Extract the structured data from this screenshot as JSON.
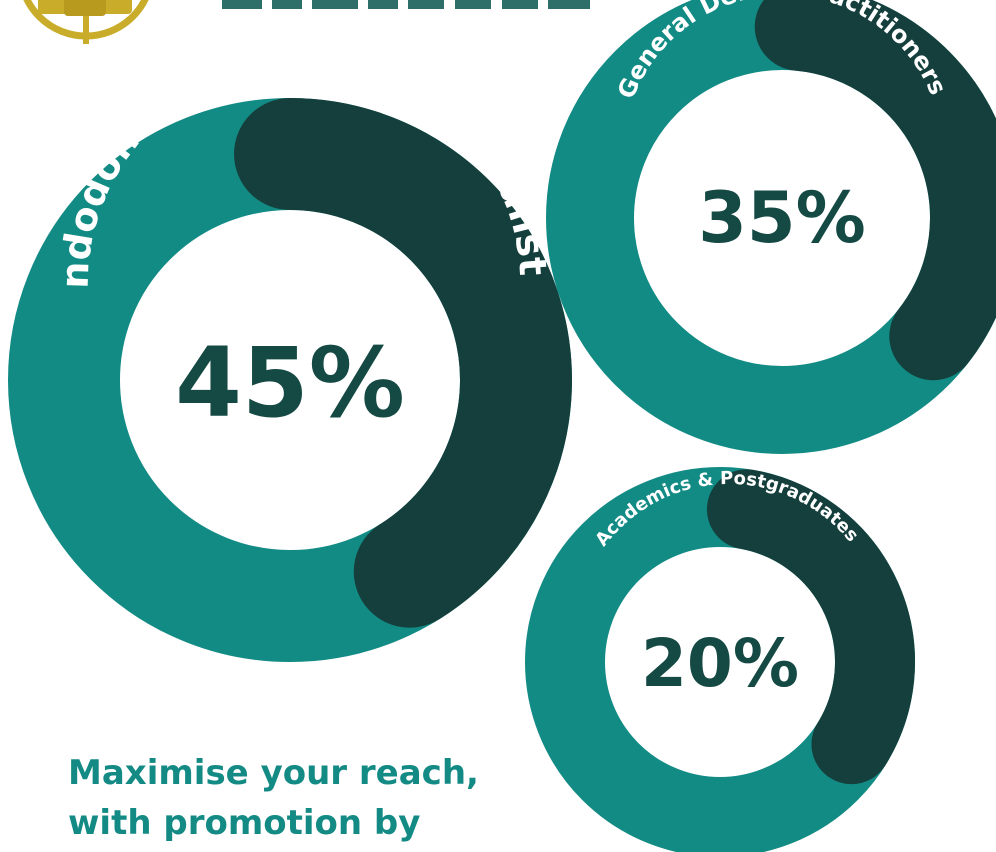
{
  "colors": {
    "teal": "#138b85",
    "dark_teal": "#143f3c",
    "percent_text": "#154944",
    "tagline_text": "#148a85",
    "logo_gold": "#c9ad2a",
    "header_text": "#2f6f6a"
  },
  "logo": {
    "icon": "gold-emblem-icon",
    "text": ""
  },
  "chart_data": {
    "type": "donut",
    "categories": [
      "Endodontists & Dental Specialists",
      "General Dental Practitioners",
      "Academics & Postgraduates"
    ],
    "values": [
      45,
      35,
      20
    ],
    "labels": [
      "45%",
      "35%",
      "20%"
    ],
    "unit": "%"
  },
  "tagline": {
    "line1": "Maximise your reach,",
    "line2": "with promotion by"
  }
}
